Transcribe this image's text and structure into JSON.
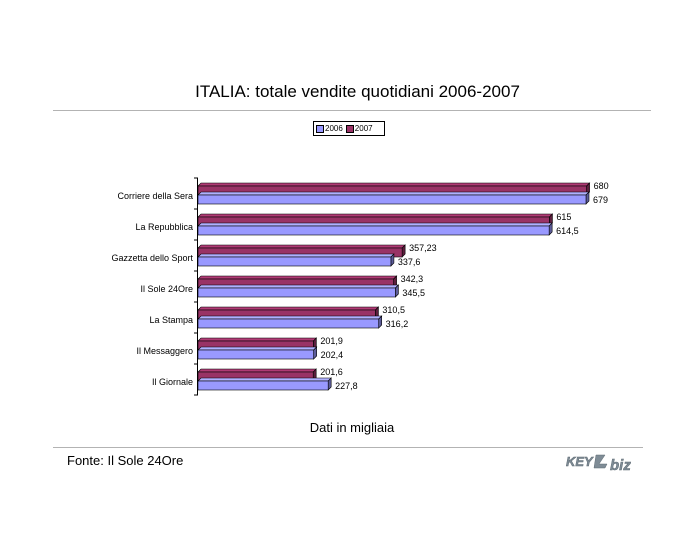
{
  "chart_data": {
    "type": "bar",
    "orientation": "horizontal",
    "style": "3d",
    "title": "ITALIA: totale vendite quotidiani 2006-2007",
    "categories": [
      "Corriere della Sera",
      "La Repubblica",
      "Gazzetta dello Sport",
      "Il Sole 24Ore",
      "La Stampa",
      "Il Messaggero",
      "Il Giornale"
    ],
    "series": [
      {
        "name": "2006",
        "color": "#9999ff",
        "values": [
          679,
          614.5,
          337.6,
          345.5,
          316.2,
          202.4,
          227.8
        ],
        "labels": [
          "679",
          "614,5",
          "337,6",
          "345,5",
          "316,2",
          "202,4",
          "227,8"
        ]
      },
      {
        "name": "2007",
        "color": "#993366",
        "values": [
          680,
          615,
          357.23,
          342.3,
          310.5,
          201.9,
          201.6
        ],
        "labels": [
          "680",
          "615",
          "357,23",
          "342,3",
          "310,5",
          "201,9",
          "201,6"
        ]
      }
    ],
    "xlim": [
      0,
      700
    ],
    "grid": false,
    "legend_position": "top",
    "note": "Dati in migliaia"
  },
  "footer": {
    "source": "Fonte: Il Sole 24Ore",
    "logo_text": "KEY4biz"
  }
}
